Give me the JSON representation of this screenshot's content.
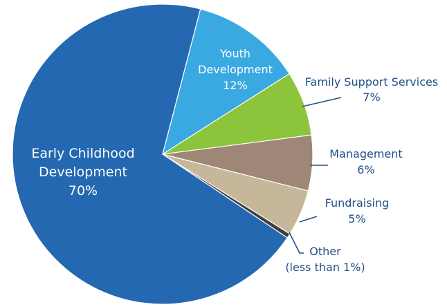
{
  "chart_data": {
    "type": "pie",
    "title": "",
    "slices": [
      {
        "lines": [
          "Youth",
          "Development",
          "12%"
        ],
        "value": 12,
        "color": "#3aa9e1",
        "label_style": "inside"
      },
      {
        "lines": [
          "Family Support Services",
          "7%"
        ],
        "value": 7,
        "color": "#8cc43c",
        "label_style": "outside"
      },
      {
        "lines": [
          "Management",
          "6%"
        ],
        "value": 6,
        "color": "#9e8777",
        "label_style": "outside"
      },
      {
        "lines": [
          "Fundraising",
          "5%"
        ],
        "value": 5,
        "color": "#c6b79b",
        "label_style": "outside"
      },
      {
        "lines": [
          "Other",
          "(less than 1%)"
        ],
        "value": 0.5,
        "color": "#3f3f3f",
        "label_style": "outside"
      },
      {
        "lines": [
          "Early Childhood",
          "Development",
          "70%"
        ],
        "value": 70,
        "color": "#2468b1",
        "label_style": "inside"
      }
    ],
    "leader_color": "#1f4e89"
  }
}
